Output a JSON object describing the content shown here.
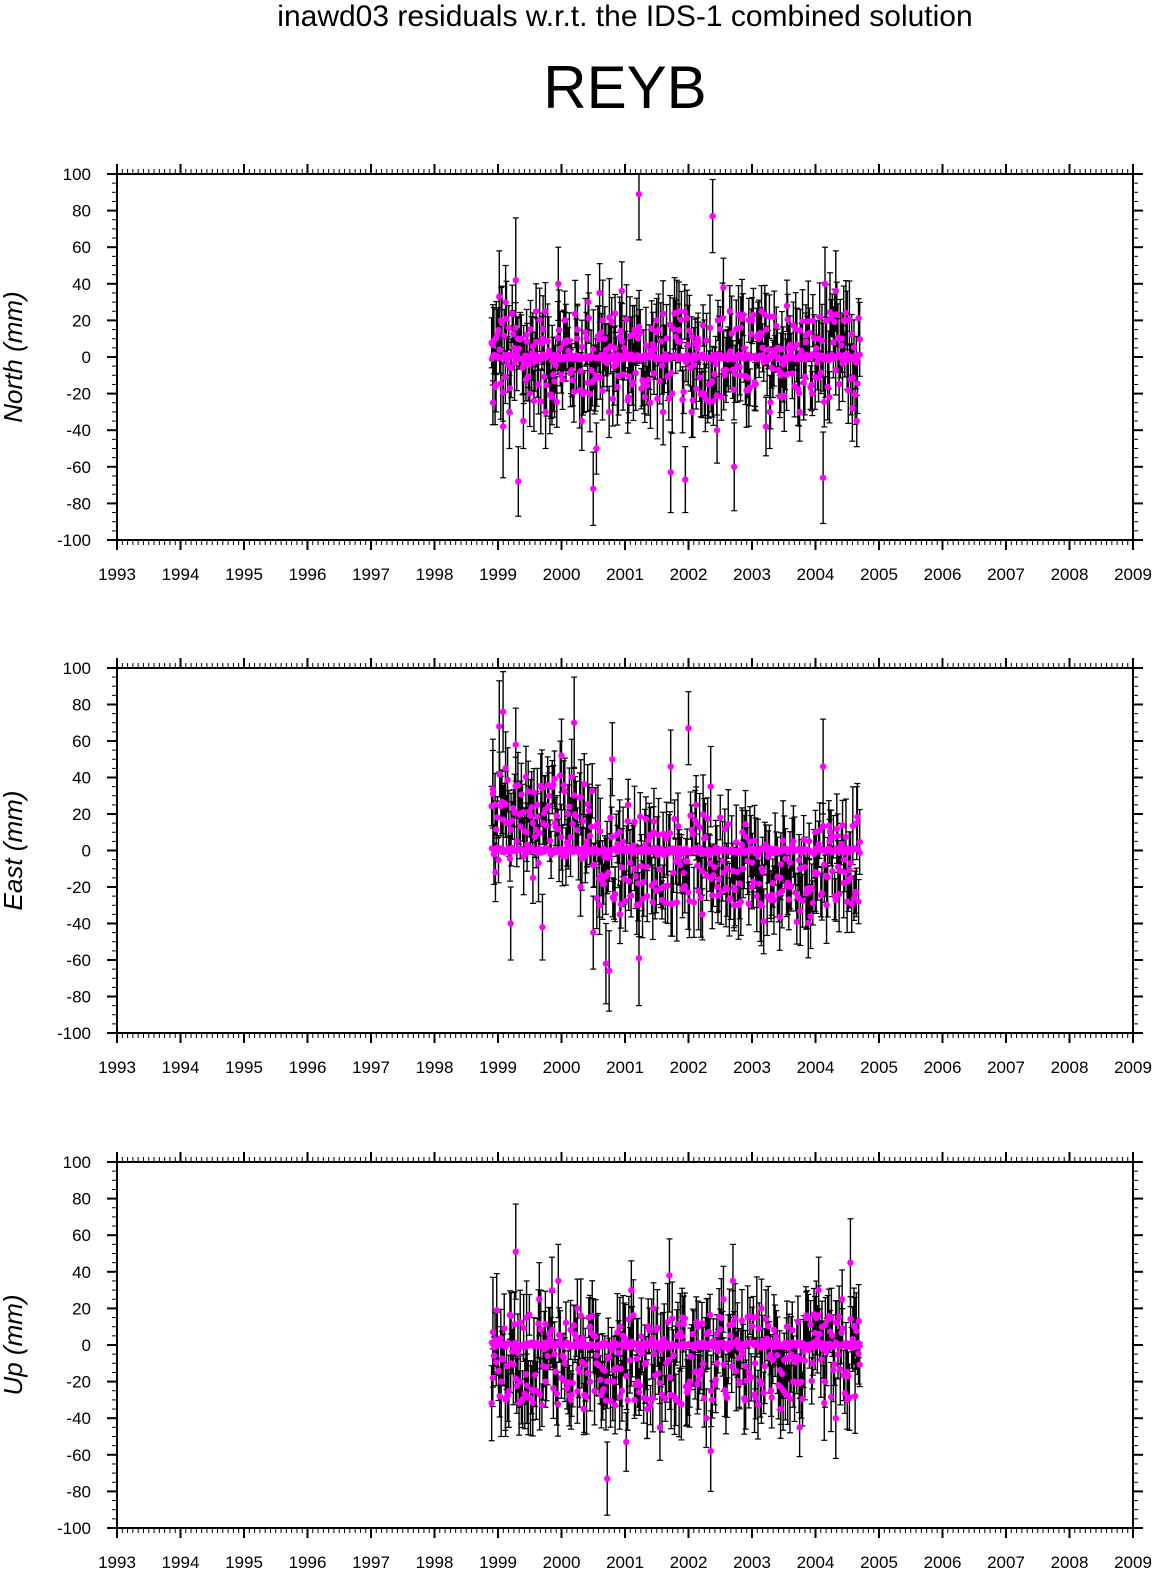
{
  "figure": {
    "title": "inawd03 residuals w.r.t. the IDS-1 combined solution",
    "station": "REYB"
  },
  "colors": {
    "marker": "#ff00ff",
    "errorbar": "#000000",
    "axis": "#000000"
  },
  "chart_data": [
    {
      "type": "scatter",
      "ylabel": "North (mm)",
      "xlim": [
        1993,
        2009
      ],
      "ylim": [
        -100,
        100
      ],
      "xticks": [
        "1993",
        "1994",
        "1995",
        "1996",
        "1997",
        "1998",
        "1999",
        "2000",
        "2001",
        "2002",
        "2003",
        "2004",
        "2005",
        "2006",
        "2007",
        "2008",
        "2009"
      ],
      "yticks": [
        "100",
        "80",
        "60",
        "40",
        "20",
        "0",
        "-20",
        "-40",
        "-60",
        "-80",
        "-100"
      ],
      "grid": false,
      "data_range": [
        1998.9,
        2004.7
      ],
      "points": [
        [
          1998.92,
          -25,
          12
        ],
        [
          1998.97,
          -15,
          15
        ],
        [
          1999.02,
          33,
          25
        ],
        [
          1999.05,
          20,
          18
        ],
        [
          1999.08,
          -38,
          28
        ],
        [
          1999.12,
          30,
          20
        ],
        [
          1999.18,
          -30,
          20
        ],
        [
          1999.25,
          5,
          12
        ],
        [
          1999.28,
          42,
          34
        ],
        [
          1999.32,
          -68,
          19
        ],
        [
          1999.4,
          -35,
          15
        ],
        [
          1999.45,
          12,
          14
        ],
        [
          1999.5,
          -20,
          18
        ],
        [
          1999.6,
          25,
          15
        ],
        [
          1999.7,
          10,
          14
        ],
        [
          1999.75,
          -30,
          20
        ],
        [
          1999.85,
          -22,
          15
        ],
        [
          1999.95,
          40,
          20
        ],
        [
          2000.05,
          20,
          16
        ],
        [
          2000.15,
          -8,
          12
        ],
        [
          2000.25,
          10,
          18
        ],
        [
          2000.32,
          -35,
          16
        ],
        [
          2000.42,
          30,
          15
        ],
        [
          2000.5,
          -72,
          20
        ],
        [
          2000.55,
          -50,
          14
        ],
        [
          2000.6,
          35,
          16
        ],
        [
          2000.65,
          20,
          22
        ],
        [
          2000.75,
          -30,
          14
        ],
        [
          2000.85,
          5,
          12
        ],
        [
          2000.95,
          36,
          16
        ],
        [
          2001.05,
          -22,
          14
        ],
        [
          2001.12,
          12,
          16
        ],
        [
          2001.22,
          89,
          25
        ],
        [
          2001.3,
          -15,
          16
        ],
        [
          2001.4,
          -25,
          14
        ],
        [
          2001.5,
          20,
          12
        ],
        [
          2001.6,
          -30,
          18
        ],
        [
          2001.72,
          -63,
          22
        ],
        [
          2001.85,
          25,
          16
        ],
        [
          2001.95,
          -67,
          18
        ],
        [
          2002.05,
          -30,
          14
        ],
        [
          2002.15,
          10,
          14
        ],
        [
          2002.25,
          -20,
          12
        ],
        [
          2002.38,
          77,
          20
        ],
        [
          2002.45,
          -40,
          18
        ],
        [
          2002.55,
          38,
          16
        ],
        [
          2002.65,
          25,
          14
        ],
        [
          2002.72,
          -60,
          24
        ],
        [
          2002.82,
          -10,
          14
        ],
        [
          2002.95,
          20,
          12
        ],
        [
          2003.05,
          -15,
          12
        ],
        [
          2003.15,
          25,
          14
        ],
        [
          2003.22,
          -38,
          16
        ],
        [
          2003.28,
          -30,
          20
        ],
        [
          2003.35,
          22,
          14
        ],
        [
          2003.45,
          -10,
          12
        ],
        [
          2003.55,
          28,
          14
        ],
        [
          2003.65,
          5,
          12
        ],
        [
          2003.75,
          -30,
          16
        ],
        [
          2003.85,
          12,
          12
        ],
        [
          2003.95,
          -20,
          12
        ],
        [
          2004.05,
          10,
          12
        ],
        [
          2004.12,
          -66,
          25
        ],
        [
          2004.15,
          40,
          20
        ],
        [
          2004.22,
          -22,
          14
        ],
        [
          2004.32,
          36,
          22
        ],
        [
          2004.42,
          10,
          14
        ],
        [
          2004.5,
          20,
          16
        ],
        [
          2004.58,
          -28,
          18
        ],
        [
          2004.65,
          -35,
          14
        ]
      ]
    },
    {
      "type": "scatter",
      "ylabel": "East (mm)",
      "xlim": [
        1993,
        2009
      ],
      "ylim": [
        -100,
        100
      ],
      "xticks": [
        "1993",
        "1994",
        "1995",
        "1996",
        "1997",
        "1998",
        "1999",
        "2000",
        "2001",
        "2002",
        "2003",
        "2004",
        "2005",
        "2006",
        "2007",
        "2008",
        "2009"
      ],
      "yticks": [
        "100",
        "80",
        "60",
        "40",
        "20",
        "0",
        "-20",
        "-40",
        "-60",
        "-80",
        "-100"
      ],
      "grid": false,
      "data_range": [
        1998.9,
        2004.7
      ],
      "points": [
        [
          1998.92,
          31,
          30
        ],
        [
          1998.96,
          -12,
          16
        ],
        [
          1999.02,
          68,
          25
        ],
        [
          1999.08,
          76,
          22
        ],
        [
          1999.12,
          45,
          20
        ],
        [
          1999.2,
          -40,
          20
        ],
        [
          1999.28,
          58,
          20
        ],
        [
          1999.35,
          20,
          18
        ],
        [
          1999.45,
          10,
          16
        ],
        [
          1999.55,
          -15,
          14
        ],
        [
          1999.62,
          25,
          20
        ],
        [
          1999.7,
          -42,
          18
        ],
        [
          1999.8,
          30,
          16
        ],
        [
          1999.9,
          15,
          14
        ],
        [
          2000.0,
          52,
          20
        ],
        [
          2000.1,
          20,
          16
        ],
        [
          2000.2,
          70,
          25
        ],
        [
          2000.3,
          -20,
          16
        ],
        [
          2000.4,
          5,
          14
        ],
        [
          2000.5,
          -45,
          20
        ],
        [
          2000.6,
          -30,
          16
        ],
        [
          2000.7,
          -62,
          22
        ],
        [
          2000.75,
          -66,
          22
        ],
        [
          2000.8,
          50,
          20
        ],
        [
          2000.92,
          -35,
          16
        ],
        [
          2001.05,
          25,
          14
        ],
        [
          2001.15,
          -10,
          12
        ],
        [
          2001.22,
          -59,
          26
        ],
        [
          2001.35,
          -25,
          14
        ],
        [
          2001.45,
          10,
          14
        ],
        [
          2001.6,
          -20,
          12
        ],
        [
          2001.72,
          46,
          20
        ],
        [
          2001.85,
          -5,
          14
        ],
        [
          2002.0,
          67,
          20
        ],
        [
          2002.12,
          25,
          16
        ],
        [
          2002.22,
          -35,
          14
        ],
        [
          2002.35,
          35,
          22
        ],
        [
          2002.45,
          -20,
          14
        ],
        [
          2002.6,
          -10,
          14
        ],
        [
          2002.72,
          -30,
          14
        ],
        [
          2002.85,
          10,
          12
        ],
        [
          2003.0,
          -20,
          12
        ],
        [
          2003.15,
          -10,
          12
        ],
        [
          2003.3,
          -25,
          14
        ],
        [
          2003.45,
          -15,
          12
        ],
        [
          2003.6,
          -20,
          12
        ],
        [
          2003.75,
          -10,
          12
        ],
        [
          2003.9,
          5,
          10
        ],
        [
          2004.0,
          10,
          12
        ],
        [
          2004.12,
          46,
          26
        ],
        [
          2004.22,
          5,
          12
        ],
        [
          2004.35,
          8,
          12
        ],
        [
          2004.45,
          -5,
          12
        ],
        [
          2004.55,
          -15,
          14
        ],
        [
          2004.65,
          15,
          20
        ]
      ]
    },
    {
      "type": "scatter",
      "ylabel": "Up (mm)",
      "xlim": [
        1993,
        2009
      ],
      "ylim": [
        -100,
        100
      ],
      "xticks": [
        "1993",
        "1994",
        "1995",
        "1996",
        "1997",
        "1998",
        "1999",
        "2000",
        "2001",
        "2002",
        "2003",
        "2004",
        "2005",
        "2006",
        "2007",
        "2008",
        "2009"
      ],
      "yticks": [
        "100",
        "80",
        "60",
        "40",
        "20",
        "0",
        "-20",
        "-40",
        "-60",
        "-80",
        "-100"
      ],
      "grid": false,
      "data_range": [
        1998.9,
        2004.7
      ],
      "points": [
        [
          1998.92,
          7,
          30
        ],
        [
          1998.98,
          19,
          20
        ],
        [
          1999.05,
          -20,
          30
        ],
        [
          1999.12,
          -30,
          20
        ],
        [
          1999.2,
          -10,
          16
        ],
        [
          1999.28,
          51,
          26
        ],
        [
          1999.35,
          -20,
          14
        ],
        [
          1999.45,
          15,
          20
        ],
        [
          1999.55,
          -25,
          16
        ],
        [
          1999.65,
          25,
          20
        ],
        [
          1999.75,
          -20,
          14
        ],
        [
          1999.85,
          30,
          18
        ],
        [
          1999.95,
          35,
          20
        ],
        [
          2000.05,
          -10,
          14
        ],
        [
          2000.15,
          -30,
          16
        ],
        [
          2000.25,
          20,
          16
        ],
        [
          2000.35,
          -35,
          14
        ],
        [
          2000.45,
          -20,
          16
        ],
        [
          2000.55,
          -10,
          14
        ],
        [
          2000.65,
          -25,
          16
        ],
        [
          2000.72,
          -73,
          20
        ],
        [
          2000.82,
          -20,
          14
        ],
        [
          2000.92,
          10,
          16
        ],
        [
          2001.02,
          -53,
          16
        ],
        [
          2001.1,
          30,
          16
        ],
        [
          2001.2,
          -20,
          14
        ],
        [
          2001.35,
          -35,
          16
        ],
        [
          2001.45,
          20,
          14
        ],
        [
          2001.55,
          -45,
          18
        ],
        [
          2001.7,
          38,
          20
        ],
        [
          2001.8,
          -30,
          14
        ],
        [
          2001.9,
          15,
          16
        ],
        [
          2002.02,
          -20,
          14
        ],
        [
          2002.15,
          10,
          14
        ],
        [
          2002.28,
          -40,
          16
        ],
        [
          2002.35,
          -58,
          22
        ],
        [
          2002.45,
          -10,
          14
        ],
        [
          2002.55,
          25,
          18
        ],
        [
          2002.7,
          35,
          20
        ],
        [
          2002.8,
          -20,
          14
        ],
        [
          2002.9,
          -30,
          16
        ],
        [
          2003.05,
          -10,
          14
        ],
        [
          2003.15,
          20,
          16
        ],
        [
          2003.3,
          -25,
          14
        ],
        [
          2003.45,
          -35,
          16
        ],
        [
          2003.55,
          10,
          14
        ],
        [
          2003.65,
          -20,
          14
        ],
        [
          2003.75,
          -45,
          16
        ],
        [
          2003.85,
          15,
          14
        ],
        [
          2003.95,
          -10,
          14
        ],
        [
          2004.05,
          30,
          18
        ],
        [
          2004.15,
          -20,
          14
        ],
        [
          2004.25,
          15,
          16
        ],
        [
          2004.32,
          -40,
          22
        ],
        [
          2004.42,
          25,
          16
        ],
        [
          2004.5,
          -30,
          16
        ],
        [
          2004.55,
          45,
          24
        ],
        [
          2004.62,
          10,
          16
        ],
        [
          2004.68,
          13,
          20
        ]
      ]
    }
  ]
}
